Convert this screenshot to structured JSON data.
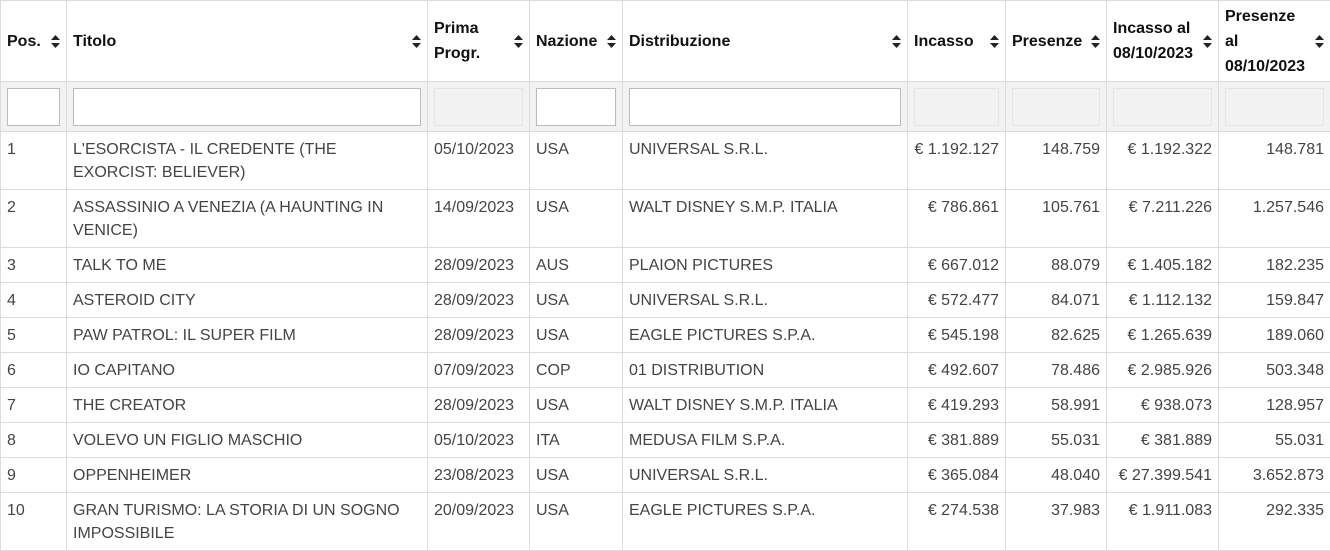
{
  "headers": {
    "pos": "Pos.",
    "titolo": "Titolo",
    "prima_l1": "Prima",
    "prima_l2": "Progr.",
    "nazione": "Nazione",
    "distribuzione": "Distribuzione",
    "incasso": "Incasso",
    "presenze": "Presenze",
    "incasso_al_l1": "Incasso al",
    "incasso_al_l2": "08/10/2023",
    "presenze_al_l1": "Presenze",
    "presenze_al_l2": "al",
    "presenze_al_l3": "08/10/2023"
  },
  "filters": {
    "pos": "",
    "titolo": "",
    "nazione": "",
    "distribuzione": ""
  },
  "rows": [
    {
      "pos": "1",
      "title_l1": "L'ESORCISTA - IL CREDENTE (THE",
      "title_l2": "EXORCIST: BELIEVER)",
      "date": "05/10/2023",
      "country": "USA",
      "distributor": "UNIVERSAL S.R.L.",
      "incasso": "€ 1.192.127",
      "presenze": "148.759",
      "incasso_tot": "€ 1.192.322",
      "presenze_tot": "148.781"
    },
    {
      "pos": "2",
      "title_l1": "ASSASSINIO A VENEZIA (A HAUNTING IN",
      "title_l2": "VENICE)",
      "date": "14/09/2023",
      "country": "USA",
      "distributor": "WALT DISNEY S.M.P. ITALIA",
      "incasso": "€ 786.861",
      "presenze": "105.761",
      "incasso_tot": "€ 7.211.226",
      "presenze_tot": "1.257.546"
    },
    {
      "pos": "3",
      "title_l1": "TALK TO ME",
      "title_l2": "",
      "date": "28/09/2023",
      "country": "AUS",
      "distributor": "PLAION PICTURES",
      "incasso": "€ 667.012",
      "presenze": "88.079",
      "incasso_tot": "€ 1.405.182",
      "presenze_tot": "182.235"
    },
    {
      "pos": "4",
      "title_l1": "ASTEROID CITY",
      "title_l2": "",
      "date": "28/09/2023",
      "country": "USA",
      "distributor": "UNIVERSAL S.R.L.",
      "incasso": "€ 572.477",
      "presenze": "84.071",
      "incasso_tot": "€ 1.112.132",
      "presenze_tot": "159.847"
    },
    {
      "pos": "5",
      "title_l1": "PAW PATROL: IL SUPER FILM",
      "title_l2": "",
      "date": "28/09/2023",
      "country": "USA",
      "distributor": "EAGLE PICTURES S.P.A.",
      "incasso": "€ 545.198",
      "presenze": "82.625",
      "incasso_tot": "€ 1.265.639",
      "presenze_tot": "189.060"
    },
    {
      "pos": "6",
      "title_l1": "IO CAPITANO",
      "title_l2": "",
      "date": "07/09/2023",
      "country": "COP",
      "distributor": "01 DISTRIBUTION",
      "incasso": "€ 492.607",
      "presenze": "78.486",
      "incasso_tot": "€ 2.985.926",
      "presenze_tot": "503.348"
    },
    {
      "pos": "7",
      "title_l1": "THE CREATOR",
      "title_l2": "",
      "date": "28/09/2023",
      "country": "USA",
      "distributor": "WALT DISNEY S.M.P. ITALIA",
      "incasso": "€ 419.293",
      "presenze": "58.991",
      "incasso_tot": "€ 938.073",
      "presenze_tot": "128.957"
    },
    {
      "pos": "8",
      "title_l1": "VOLEVO UN FIGLIO MASCHIO",
      "title_l2": "",
      "date": "05/10/2023",
      "country": "ITA",
      "distributor": "MEDUSA FILM S.P.A.",
      "incasso": "€ 381.889",
      "presenze": "55.031",
      "incasso_tot": "€ 381.889",
      "presenze_tot": "55.031"
    },
    {
      "pos": "9",
      "title_l1": "OPPENHEIMER",
      "title_l2": "",
      "date": "23/08/2023",
      "country": "USA",
      "distributor": "UNIVERSAL S.R.L.",
      "incasso": "€ 365.084",
      "presenze": "48.040",
      "incasso_tot": "€ 27.399.541",
      "presenze_tot": "3.652.873"
    },
    {
      "pos": "10",
      "title_l1": "GRAN TURISMO: LA STORIA DI UN SOGNO",
      "title_l2": "IMPOSSIBILE",
      "date": "20/09/2023",
      "country": "USA",
      "distributor": "EAGLE PICTURES S.P.A.",
      "incasso": "€ 274.538",
      "presenze": "37.983",
      "incasso_tot": "€ 1.911.083",
      "presenze_tot": "292.335"
    }
  ]
}
